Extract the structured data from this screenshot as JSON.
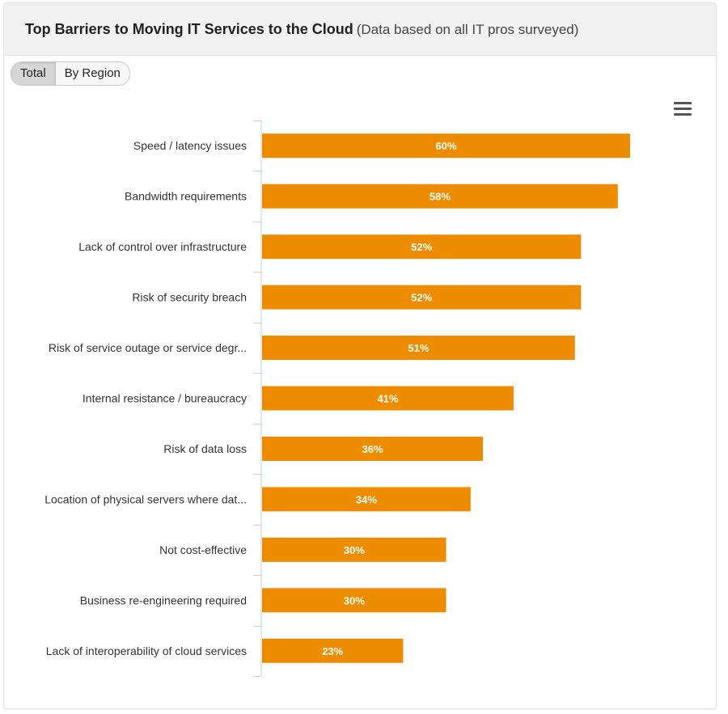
{
  "header": {
    "title": "Top Barriers to Moving IT Services to the Cloud",
    "subtitle": "(Data based on all IT pros surveyed)"
  },
  "toggle": {
    "options": [
      {
        "label": "Total",
        "active": true
      },
      {
        "label": "By Region",
        "active": false
      }
    ]
  },
  "menu": {
    "icon": "hamburger-menu-icon"
  },
  "colors": {
    "bar": "#ee8c00",
    "axis": "#c0d0e0",
    "label": "#333333",
    "value_label": "#ffffff"
  },
  "chart_data": {
    "type": "bar",
    "orientation": "horizontal",
    "categories": [
      "Speed / latency issues",
      "Bandwidth requirements",
      "Lack of control over infrastructure",
      "Risk of security breach",
      "Risk of service outage or service degr...",
      "Internal resistance / bureaucracy",
      "Risk of data loss",
      "Location of physical servers where dat...",
      "Not cost-effective",
      "Business re-engineering required",
      "Lack of interoperability of cloud services"
    ],
    "values": [
      60,
      58,
      52,
      52,
      51,
      41,
      36,
      34,
      30,
      30,
      23
    ],
    "value_labels": [
      "60%",
      "58%",
      "52%",
      "52%",
      "51%",
      "41%",
      "36%",
      "34%",
      "30%",
      "30%",
      "23%"
    ],
    "unit": "%",
    "xlim": [
      0,
      60
    ],
    "grid": false,
    "legend": "none",
    "data_labels": "inside-bar"
  }
}
